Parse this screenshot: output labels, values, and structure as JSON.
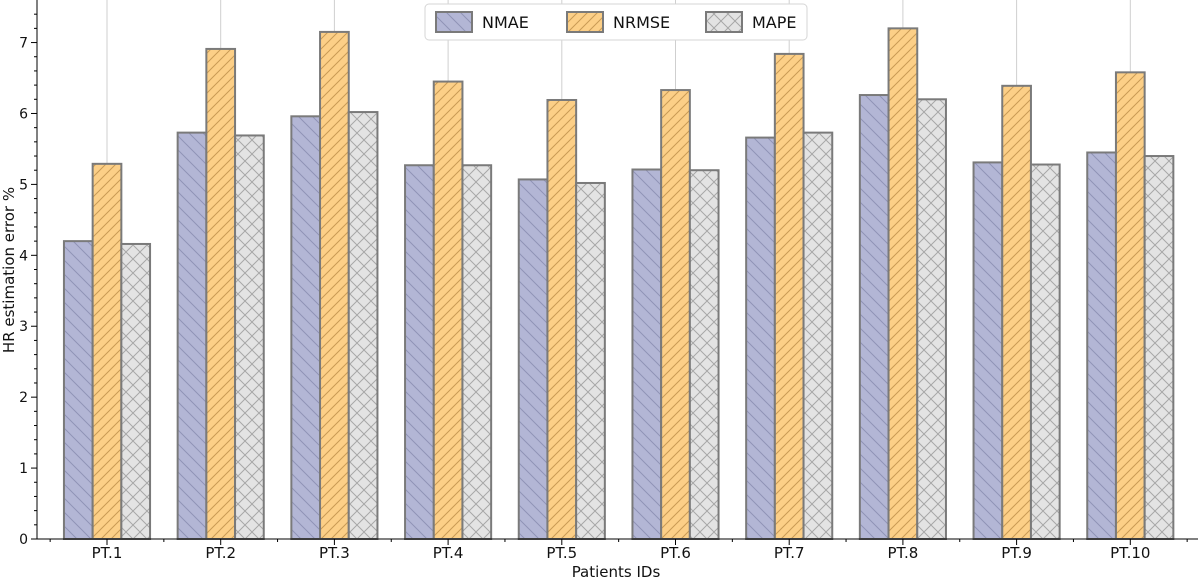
{
  "chart_data": {
    "type": "bar",
    "title": "",
    "xlabel": "Patients IDs",
    "ylabel": "HR estimation error %",
    "ylim": [
      0,
      7.6
    ],
    "yticks": [
      0,
      1,
      2,
      3,
      4,
      5,
      6,
      7
    ],
    "grid": "vertical lines at category centers",
    "legend_position": "top-center",
    "categories": [
      "PT.1",
      "PT.2",
      "PT.3",
      "PT.4",
      "PT.5",
      "PT.6",
      "PT.7",
      "PT.8",
      "PT.9",
      "PT.10"
    ],
    "series": [
      {
        "name": "NMAE",
        "values": [
          4.2,
          5.73,
          5.96,
          5.27,
          5.07,
          5.21,
          5.66,
          6.26,
          5.31,
          5.45
        ],
        "color": "#b3b6d5",
        "hatch": "backslash"
      },
      {
        "name": "NRMSE",
        "values": [
          5.29,
          6.91,
          7.15,
          6.45,
          6.19,
          6.33,
          6.84,
          7.2,
          6.39,
          6.58
        ],
        "color": "#fccf87",
        "hatch": "slash"
      },
      {
        "name": "MAPE",
        "values": [
          4.16,
          5.69,
          6.02,
          5.27,
          5.02,
          5.2,
          5.73,
          6.2,
          5.28,
          5.4
        ],
        "color": "#e3e3e3",
        "hatch": "cross"
      }
    ]
  }
}
